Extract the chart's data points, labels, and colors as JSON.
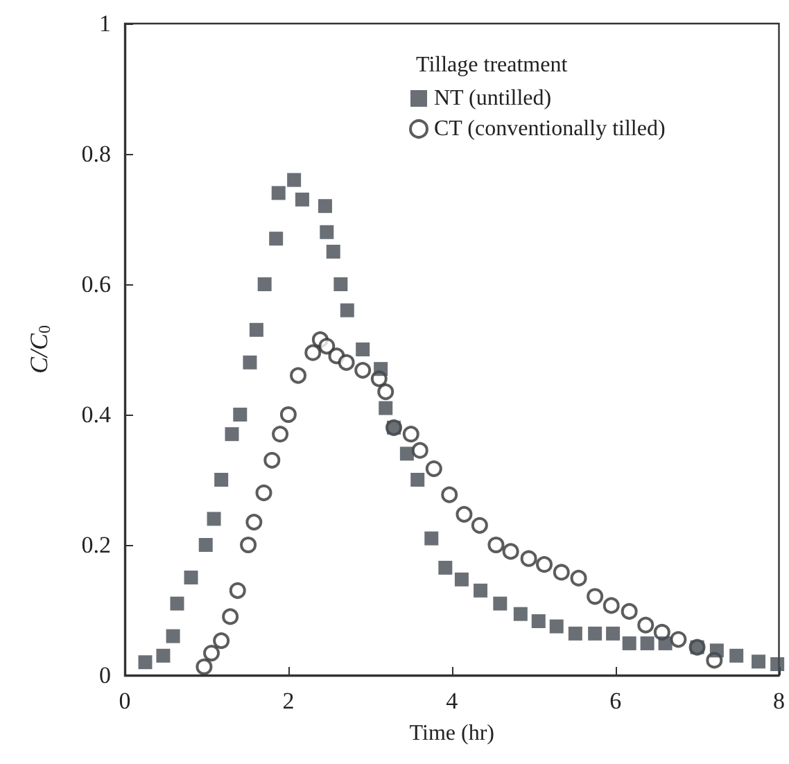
{
  "chart_data": {
    "type": "scatter",
    "xlabel": "Time (hr)",
    "ylabel": "C/C$_{0}$",
    "legend_title": "Tillage treatment",
    "legend": "top right",
    "grid": false,
    "xlim": [
      0,
      8
    ],
    "xticks": [
      0,
      2,
      4,
      6,
      8
    ],
    "ylim": [
      0,
      1
    ],
    "yticks": [
      0,
      0.2,
      0.4,
      0.6,
      0.8,
      1
    ],
    "series": [
      {
        "name": "NT (untilled)",
        "color": "#454b54",
        "marker": "square",
        "x": [
          0.25,
          0.47,
          0.59,
          0.64,
          0.81,
          0.99,
          1.09,
          1.18,
          1.31,
          1.41,
          1.53,
          1.61,
          1.71,
          1.85,
          1.88,
          2.07,
          2.17,
          2.45,
          2.47,
          2.55,
          2.64,
          2.72,
          2.91,
          3.13,
          3.19,
          3.29,
          3.45,
          3.58,
          3.75,
          3.92,
          4.12,
          4.35,
          4.59,
          4.84,
          5.06,
          5.28,
          5.51,
          5.75,
          5.97,
          6.17,
          6.39,
          6.61,
          7.0,
          7.24,
          7.48,
          7.75,
          7.98
        ],
        "values": [
          0.02,
          0.03,
          0.06,
          0.11,
          0.15,
          0.2,
          0.24,
          0.3,
          0.37,
          0.4,
          0.48,
          0.53,
          0.6,
          0.67,
          0.74,
          0.76,
          0.73,
          0.72,
          0.68,
          0.65,
          0.6,
          0.56,
          0.5,
          0.47,
          0.41,
          0.38,
          0.34,
          0.3,
          0.21,
          0.165,
          0.147,
          0.13,
          0.11,
          0.094,
          0.083,
          0.075,
          0.064,
          0.064,
          0.064,
          0.049,
          0.049,
          0.049,
          0.043,
          0.038,
          0.03,
          0.021,
          0.017
        ]
      },
      {
        "name": "CT (conventionally tilled)",
        "color": "#333333",
        "marker": "circle",
        "x": [
          0.97,
          1.06,
          1.18,
          1.29,
          1.38,
          1.51,
          1.58,
          1.7,
          1.8,
          1.9,
          2.0,
          2.12,
          2.3,
          2.39,
          2.47,
          2.59,
          2.71,
          2.91,
          3.11,
          3.19,
          3.29,
          3.5,
          3.61,
          3.78,
          3.97,
          4.15,
          4.34,
          4.54,
          4.72,
          4.94,
          5.13,
          5.34,
          5.55,
          5.75,
          5.95,
          6.17,
          6.37,
          6.57,
          6.77,
          7.0,
          7.21
        ],
        "values": [
          0.013,
          0.034,
          0.053,
          0.09,
          0.13,
          0.2,
          0.235,
          0.28,
          0.33,
          0.37,
          0.4,
          0.46,
          0.495,
          0.515,
          0.505,
          0.49,
          0.48,
          0.468,
          0.455,
          0.435,
          0.38,
          0.37,
          0.345,
          0.317,
          0.277,
          0.247,
          0.23,
          0.2,
          0.19,
          0.179,
          0.17,
          0.158,
          0.149,
          0.121,
          0.107,
          0.098,
          0.077,
          0.066,
          0.055,
          0.043,
          0.023
        ]
      }
    ]
  }
}
